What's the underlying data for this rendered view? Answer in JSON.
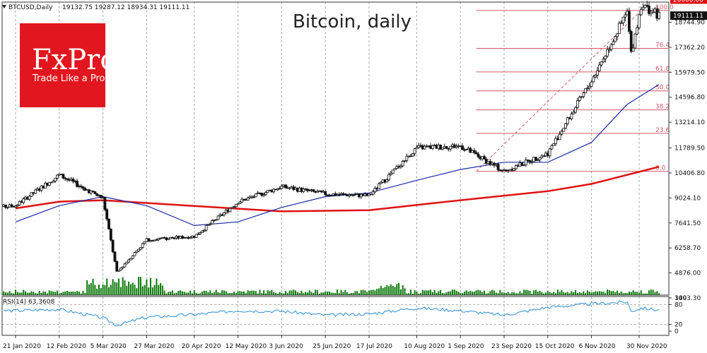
{
  "header": {
    "symbol": "BTCUSD,Daily",
    "ohlc": "19132.75 19287.12 18934.31 19111.11"
  },
  "logo": {
    "brand": "FxPro",
    "tagline": "Trade Like a Pro",
    "color": "#e2161e"
  },
  "chart_data": {
    "type": "candlestick",
    "title": "Bitcoin, daily",
    "y_tick_labels": [
      "20000.00",
      "18744.90",
      "17362.20",
      "15979.50",
      "14596.80",
      "13214.10",
      "11789.50",
      "10406.80",
      "9024.10",
      "7641.50",
      "6258.70",
      "4876.00",
      "3493.30"
    ],
    "price_highlight": {
      "label": "20000.00",
      "value": 20000
    },
    "current_price": {
      "label": "19111.11",
      "value": 19111.11
    },
    "x_tick_labels": [
      "21 Jan 2020",
      "12 Feb 2020",
      "5 Mar 2020",
      "27 Mar 2020",
      "20 Apr 2020",
      "12 May 2020",
      "3 Jun 2020",
      "25 Jun 2020",
      "17 Jul 2020",
      "10 Aug 2020",
      "1 Sep 2020",
      "23 Sep 2020",
      "15 Oct 2020",
      "6 Nov 2020",
      "30 Nov 2020"
    ],
    "series": [
      {
        "name": "price",
        "kind": "candles",
        "key_closes": [
          {
            "date": "2020-01-21",
            "close": 8600
          },
          {
            "date": "2020-02-12",
            "close": 10300
          },
          {
            "date": "2020-03-05",
            "close": 9000
          },
          {
            "date": "2020-03-12",
            "close": 4900
          },
          {
            "date": "2020-03-27",
            "close": 6700
          },
          {
            "date": "2020-04-20",
            "close": 6900
          },
          {
            "date": "2020-05-12",
            "close": 8800
          },
          {
            "date": "2020-06-03",
            "close": 9650
          },
          {
            "date": "2020-06-25",
            "close": 9250
          },
          {
            "date": "2020-07-17",
            "close": 9150
          },
          {
            "date": "2020-08-10",
            "close": 11800
          },
          {
            "date": "2020-09-01",
            "close": 11900
          },
          {
            "date": "2020-09-23",
            "close": 10500
          },
          {
            "date": "2020-10-15",
            "close": 11500
          },
          {
            "date": "2020-11-06",
            "close": 15500
          },
          {
            "date": "2020-11-24",
            "close": 19300
          },
          {
            "date": "2020-11-26",
            "close": 17000
          },
          {
            "date": "2020-12-01",
            "close": 19700
          },
          {
            "date": "2020-12-10",
            "close": 19111.11
          }
        ]
      },
      {
        "name": "moving-average-red",
        "color": "#e01010",
        "values": [
          {
            "date": "2020-01-21",
            "value": 8450
          },
          {
            "date": "2020-02-12",
            "value": 8820
          },
          {
            "date": "2020-03-05",
            "value": 8900
          },
          {
            "date": "2020-04-20",
            "value": 8580
          },
          {
            "date": "2020-06-03",
            "value": 8280
          },
          {
            "date": "2020-07-17",
            "value": 8350
          },
          {
            "date": "2020-09-01",
            "value": 8900
          },
          {
            "date": "2020-10-15",
            "value": 9400
          },
          {
            "date": "2020-11-06",
            "value": 9800
          },
          {
            "date": "2020-12-10",
            "value": 10750
          }
        ]
      },
      {
        "name": "moving-average-blue",
        "color": "#1a2aa8",
        "values": [
          {
            "date": "2020-01-21",
            "value": 7700
          },
          {
            "date": "2020-02-12",
            "value": 8600
          },
          {
            "date": "2020-03-05",
            "value": 9100
          },
          {
            "date": "2020-03-27",
            "value": 8600
          },
          {
            "date": "2020-04-20",
            "value": 7500
          },
          {
            "date": "2020-05-12",
            "value": 7700
          },
          {
            "date": "2020-06-03",
            "value": 8500
          },
          {
            "date": "2020-06-25",
            "value": 9100
          },
          {
            "date": "2020-07-17",
            "value": 9300
          },
          {
            "date": "2020-08-10",
            "value": 10000
          },
          {
            "date": "2020-09-01",
            "value": 10600
          },
          {
            "date": "2020-09-23",
            "value": 11000
          },
          {
            "date": "2020-10-15",
            "value": 11000
          },
          {
            "date": "2020-11-06",
            "value": 12100
          },
          {
            "date": "2020-11-24",
            "value": 14200
          },
          {
            "date": "2020-12-10",
            "value": 15300
          }
        ]
      }
    ],
    "fibonacci": {
      "color": "#d4566a",
      "levels": [
        {
          "label": "100.0",
          "value": 19400
        },
        {
          "label": "76.4",
          "value": 17300
        },
        {
          "label": "61.8",
          "value": 16000
        },
        {
          "label": "50.0",
          "value": 14950
        },
        {
          "label": "38.2",
          "value": 13900
        },
        {
          "label": "23.6",
          "value": 12600
        },
        {
          "label": "0.0",
          "value": 10500
        }
      ]
    },
    "rsi": {
      "label": "RSI(14) 63.3608",
      "scale_labels": [
        "100",
        "80",
        "20",
        "0"
      ],
      "color": "#2a8fd4",
      "values": [
        {
          "date": "2020-01-21",
          "value": 62
        },
        {
          "date": "2020-02-12",
          "value": 66
        },
        {
          "date": "2020-03-05",
          "value": 40
        },
        {
          "date": "2020-03-12",
          "value": 18
        },
        {
          "date": "2020-03-27",
          "value": 42
        },
        {
          "date": "2020-04-20",
          "value": 50
        },
        {
          "date": "2020-05-12",
          "value": 62
        },
        {
          "date": "2020-06-03",
          "value": 60
        },
        {
          "date": "2020-06-25",
          "value": 48
        },
        {
          "date": "2020-07-17",
          "value": 52
        },
        {
          "date": "2020-08-10",
          "value": 70
        },
        {
          "date": "2020-09-01",
          "value": 62
        },
        {
          "date": "2020-09-23",
          "value": 48
        },
        {
          "date": "2020-10-15",
          "value": 72
        },
        {
          "date": "2020-11-06",
          "value": 82
        },
        {
          "date": "2020-11-24",
          "value": 88
        },
        {
          "date": "2020-11-26",
          "value": 60
        },
        {
          "date": "2020-12-01",
          "value": 70
        },
        {
          "date": "2020-12-10",
          "value": 63.36
        }
      ]
    },
    "volume": {
      "color": "#0a7a0a"
    },
    "grid": true,
    "xlim": [
      "2020-01-01",
      "2020-12-12"
    ],
    "ylim": [
      3493.3,
      20500
    ]
  }
}
